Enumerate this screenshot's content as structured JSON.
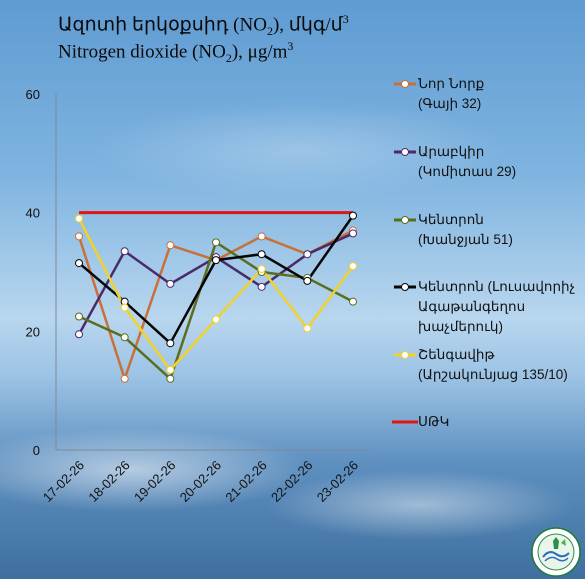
{
  "title": {
    "line1_pre": "Ազոտի  երկօքսիդ (NO",
    "line1_sub": "2",
    "line1_post": "), մկգ/մ",
    "line1_sup": "3",
    "line2_pre": "Nitrogen  dioxide (NO",
    "line2_sub": "2",
    "line2_post": "), μg/m",
    "line2_sup": "3"
  },
  "chart_data": {
    "type": "line",
    "categories": [
      "17-02-26",
      "18-02-26",
      "19-02-26",
      "20-02-26",
      "21-02-26",
      "22-02-26",
      "23-02-26"
    ],
    "ylim": [
      0,
      60
    ],
    "yticks": [
      "0",
      "20",
      "40",
      "60"
    ],
    "series": [
      {
        "name": "Նոր Նորք",
        "sub": "(Գայի 32)",
        "color": "#c8703a",
        "values": [
          36,
          12,
          34.5,
          32,
          36,
          33,
          37
        ]
      },
      {
        "name": "Արաբկիր",
        "sub": "(Կոմիտաս 29)",
        "color": "#4a2a6a",
        "values": [
          19.5,
          33.5,
          28,
          32.5,
          27.5,
          33,
          36.5
        ]
      },
      {
        "name": "Կենտրոն",
        "sub": "(Խանջյան 51)",
        "color": "#5a6e1e",
        "values": [
          22.5,
          19,
          12,
          35,
          30,
          29,
          25
        ]
      },
      {
        "name": "Կենտրոն (Լուսավորիչ",
        "sub": "Ագաթանգեղոս",
        "sub2": "խաչմերուկ)",
        "color": "#050505",
        "values": [
          31.5,
          25,
          18,
          32,
          33,
          28.5,
          39.5
        ]
      },
      {
        "name": "Շենգավիթ",
        "sub": "(Արշակունյաց 135/10)",
        "color": "#f2d22a",
        "values": [
          39,
          24,
          13.5,
          22,
          30.5,
          20.5,
          31
        ]
      }
    ],
    "limit": {
      "name": "ՍԹԿ",
      "color": "#e31414",
      "value": 40
    }
  }
}
